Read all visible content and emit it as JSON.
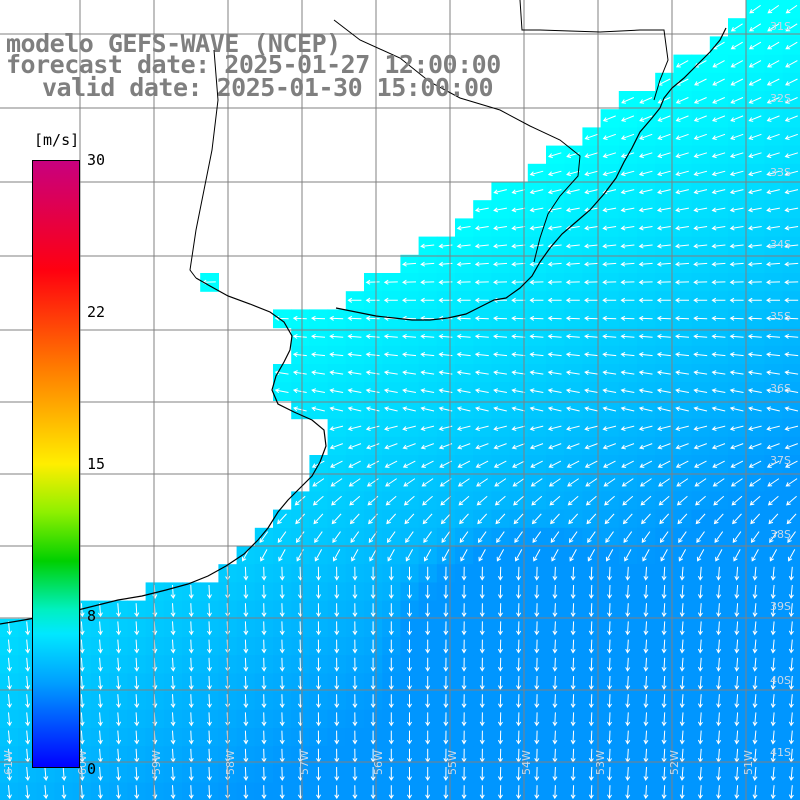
{
  "title": {
    "line1": "modelo GEFS-WAVE (NCEP)",
    "line2": "forecast date: 2025-01-27 12:00:00",
    "line3": "valid date: 2025-01-30 15:00:00"
  },
  "colorbar": {
    "unit": "[m/s]",
    "ticks": [
      "30",
      "22",
      "15",
      "8",
      "0"
    ],
    "colors": [
      "#c8007f",
      "#ff0010",
      "#ff7a00",
      "#ffee00",
      "#00d000",
      "#00e8ff",
      "#0000ff"
    ]
  },
  "map": {
    "lat_labels": [
      "31S",
      "32S",
      "33S",
      "34S",
      "35S",
      "36S",
      "37S",
      "38S",
      "39S",
      "40S",
      "41S"
    ],
    "lon_labels": [
      "61W",
      "60W",
      "59W",
      "58W",
      "57W",
      "56W",
      "55W",
      "54W",
      "53W",
      "52W",
      "51W"
    ],
    "land_color": "#ffffff",
    "grid_color": "#808080",
    "vector_color": "#ffffff"
  }
}
